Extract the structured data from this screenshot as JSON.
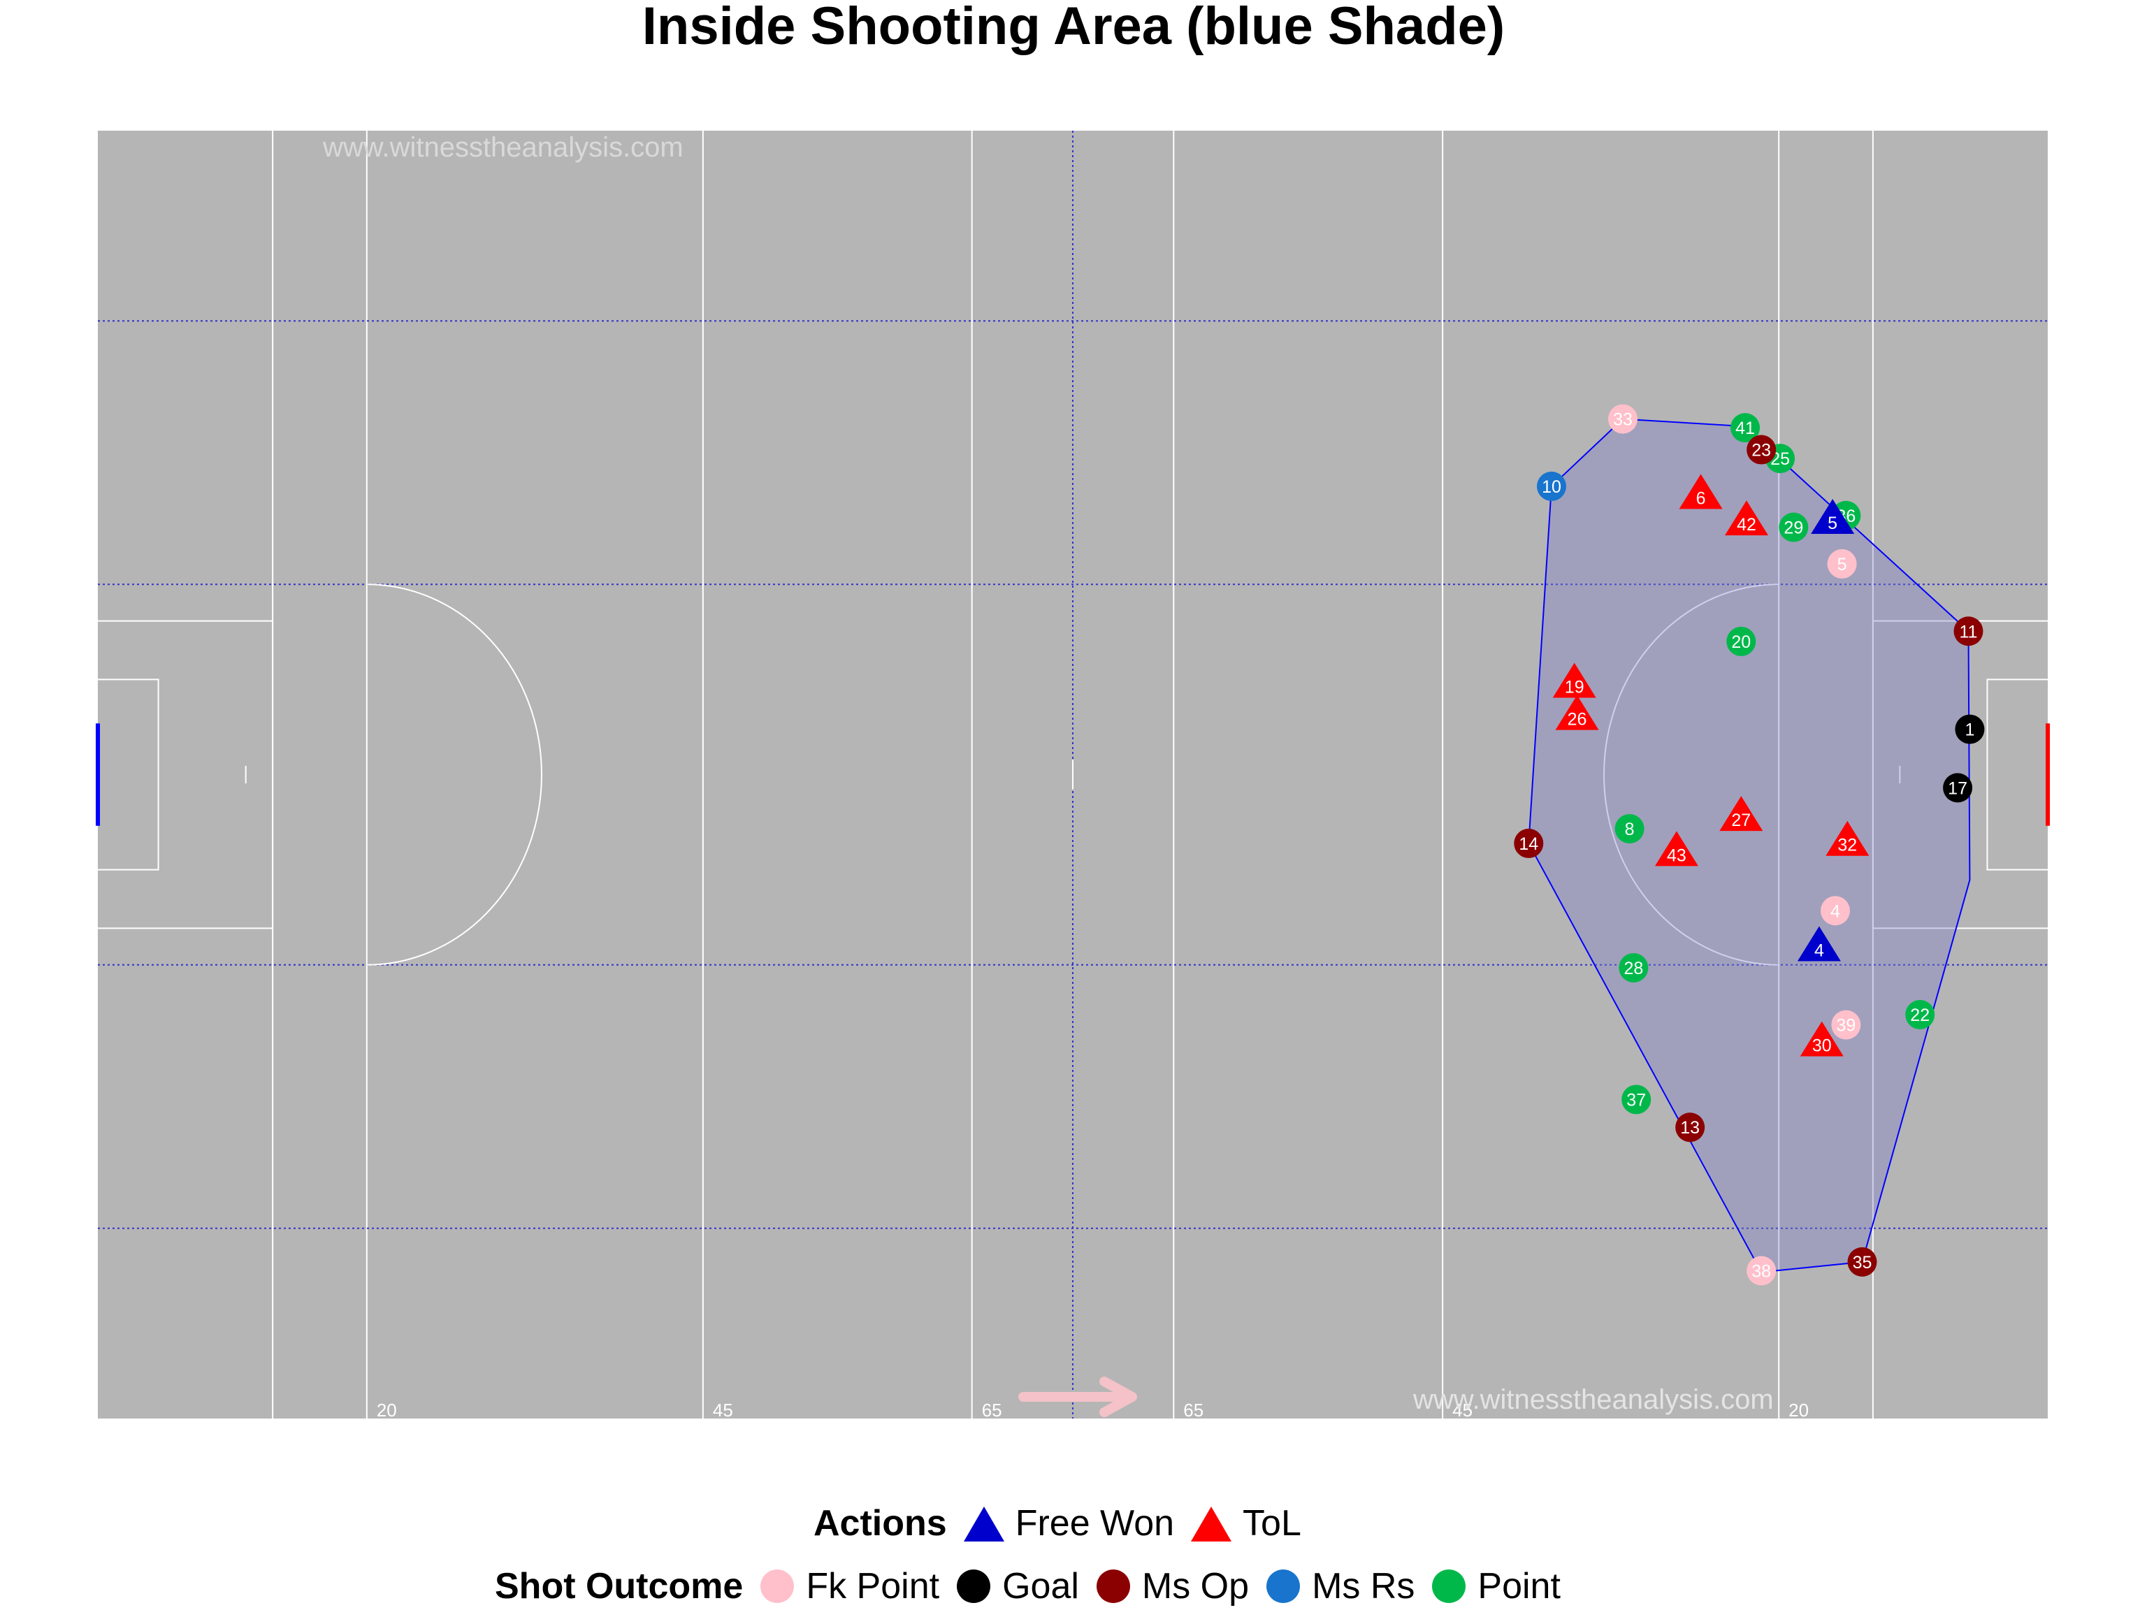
{
  "chart_data": {
    "type": "scatter",
    "title": "Inside Shooting Area (blue Shade)",
    "watermark": "www.witnesstheanalysis.com",
    "xlim": [
      0,
      145
    ],
    "ylim": [
      0,
      88
    ],
    "pitch_lines": {
      "solid_x": [
        13,
        20,
        45,
        65,
        80,
        100,
        125,
        132
      ],
      "dotted_x": [
        72.5
      ],
      "dotted_y": [
        13,
        31,
        57,
        75
      ],
      "x_labels": [
        {
          "x": 20,
          "label": "20"
        },
        {
          "x": 45,
          "label": "45"
        },
        {
          "x": 65,
          "label": "65"
        },
        {
          "x": 80,
          "label": "65"
        },
        {
          "x": 100,
          "label": "45"
        },
        {
          "x": 125,
          "label": "20"
        }
      ]
    },
    "shooting_area_hull": [
      [
        113.4,
        68.3
      ],
      [
        122.4,
        67.8
      ],
      [
        139.1,
        53.8
      ],
      [
        139.2,
        36.8
      ],
      [
        131.2,
        10.7
      ],
      [
        123.7,
        10.0
      ],
      [
        106.4,
        39.3
      ],
      [
        108.1,
        63.7
      ]
    ],
    "legend": {
      "actions_title": "Actions",
      "actions": [
        {
          "label": "Free Won",
          "color": "#0000cc"
        },
        {
          "label": "ToL",
          "color": "#ff0000"
        }
      ],
      "outcome_title": "Shot Outcome",
      "outcomes": [
        {
          "label": "Fk Point",
          "color": "#ffc0cb"
        },
        {
          "label": "Goal",
          "color": "#000000"
        },
        {
          "label": "Ms Op",
          "color": "#8b0000"
        },
        {
          "label": "Ms Rs",
          "color": "#1874cd"
        },
        {
          "label": "Point",
          "color": "#00b84a"
        }
      ]
    },
    "series": [
      {
        "name": "Point",
        "shape": "circle",
        "color": "#00b84a",
        "points": [
          {
            "n": "41",
            "x": 122.5,
            "y": 67.7
          },
          {
            "n": "25",
            "x": 125.1,
            "y": 65.6
          },
          {
            "n": "36",
            "x": 130.0,
            "y": 61.7
          },
          {
            "n": "29",
            "x": 126.1,
            "y": 60.9
          },
          {
            "n": "20",
            "x": 122.2,
            "y": 53.1
          },
          {
            "n": "8",
            "x": 113.9,
            "y": 40.3
          },
          {
            "n": "28",
            "x": 114.2,
            "y": 30.8
          },
          {
            "n": "22",
            "x": 135.5,
            "y": 27.6
          },
          {
            "n": "37",
            "x": 114.4,
            "y": 21.8
          }
        ]
      },
      {
        "name": "Fk Point",
        "shape": "circle",
        "color": "#ffc0cb",
        "points": [
          {
            "n": "33",
            "x": 113.4,
            "y": 68.3
          },
          {
            "n": "5",
            "x": 129.7,
            "y": 58.4
          },
          {
            "n": "4",
            "x": 129.2,
            "y": 34.7
          },
          {
            "n": "39",
            "x": 130.0,
            "y": 26.9
          },
          {
            "n": "38",
            "x": 123.7,
            "y": 10.1
          }
        ]
      },
      {
        "name": "Ms Op",
        "shape": "circle",
        "color": "#8b0000",
        "points": [
          {
            "n": "23",
            "x": 123.7,
            "y": 66.2
          },
          {
            "n": "11",
            "x": 139.1,
            "y": 53.8
          },
          {
            "n": "14",
            "x": 106.4,
            "y": 39.3
          },
          {
            "n": "13",
            "x": 118.4,
            "y": 19.9
          },
          {
            "n": "35",
            "x": 131.2,
            "y": 10.7
          }
        ]
      },
      {
        "name": "Ms Rs",
        "shape": "circle",
        "color": "#1874cd",
        "points": [
          {
            "n": "10",
            "x": 108.1,
            "y": 63.7
          }
        ]
      },
      {
        "name": "Goal",
        "shape": "circle",
        "color": "#000000",
        "points": [
          {
            "n": "1",
            "x": 139.2,
            "y": 47.1
          },
          {
            "n": "17",
            "x": 138.3,
            "y": 43.1
          }
        ]
      },
      {
        "name": "ToL",
        "shape": "triangle",
        "color": "#ff0000",
        "points": [
          {
            "n": "6",
            "x": 119.2,
            "y": 63.2
          },
          {
            "n": "42",
            "x": 122.6,
            "y": 61.4
          },
          {
            "n": "19",
            "x": 109.8,
            "y": 50.3
          },
          {
            "n": "26",
            "x": 110.0,
            "y": 48.1
          },
          {
            "n": "27",
            "x": 122.2,
            "y": 41.2
          },
          {
            "n": "32",
            "x": 130.1,
            "y": 39.5
          },
          {
            "n": "43",
            "x": 117.4,
            "y": 38.8
          },
          {
            "n": "30",
            "x": 128.2,
            "y": 25.8
          }
        ]
      },
      {
        "name": "Free Won",
        "shape": "triangle",
        "color": "#0000cc",
        "points": [
          {
            "n": "5",
            "x": 129.0,
            "y": 61.5
          },
          {
            "n": "4",
            "x": 128.0,
            "y": 32.3
          }
        ]
      }
    ]
  }
}
